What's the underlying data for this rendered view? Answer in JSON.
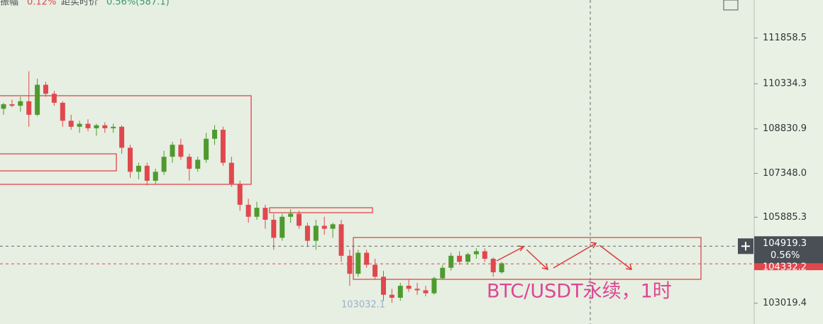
{
  "chart_data": {
    "type": "candlestick",
    "header": {
      "range_label": "振幅",
      "range_value": "0.12%",
      "dist_label": "距实时价",
      "dist_value": "0.56%(587.1)"
    },
    "annotation": "BTC/USDT永续，1时",
    "ylim": [
      102326,
      113125
    ],
    "yticks": [
      111858.5,
      110334.3,
      108830.9,
      {
        "value": 107348.0,
        "label": "107348.0"
      },
      105885.3,
      103019.4
    ],
    "up_color": "#4f9a2f",
    "down_color": "#e0484e",
    "candles": [
      [
        109500,
        109700,
        109300,
        109650
      ],
      [
        109650,
        109800,
        109550,
        109600
      ],
      [
        109600,
        109900,
        109400,
        109750
      ],
      [
        109750,
        110750,
        108900,
        109300
      ],
      [
        109300,
        110500,
        109250,
        110300
      ],
      [
        110300,
        110400,
        109900,
        110000
      ],
      [
        110000,
        110100,
        109600,
        109700
      ],
      [
        109700,
        109750,
        108900,
        109100
      ],
      [
        109100,
        109300,
        108800,
        108900
      ],
      [
        108900,
        109100,
        108700,
        109000
      ],
      [
        109000,
        109150,
        108750,
        108850
      ],
      [
        108850,
        109000,
        108600,
        108950
      ],
      [
        108950,
        109050,
        108700,
        108850
      ],
      [
        108850,
        109000,
        108700,
        108900
      ],
      [
        108900,
        108950,
        108000,
        108200
      ],
      [
        108200,
        108300,
        107200,
        107400
      ],
      [
        107400,
        107700,
        107150,
        107600
      ],
      [
        107600,
        107700,
        106950,
        107100
      ],
      [
        107100,
        107500,
        107000,
        107400
      ],
      [
        107400,
        108100,
        107300,
        107900
      ],
      [
        107900,
        108400,
        107700,
        108300
      ],
      [
        108300,
        108500,
        107800,
        107900
      ],
      [
        107900,
        108000,
        107100,
        107500
      ],
      [
        107500,
        107900,
        107400,
        107800
      ],
      [
        107800,
        108700,
        107700,
        108500
      ],
      [
        108500,
        108950,
        108300,
        108800
      ],
      [
        108800,
        108900,
        107600,
        107700
      ],
      [
        107700,
        107900,
        106900,
        107000
      ],
      [
        107000,
        107100,
        106100,
        106300
      ],
      [
        106300,
        106500,
        105700,
        105900
      ],
      [
        105900,
        106400,
        105800,
        106200
      ],
      [
        106200,
        106300,
        105500,
        105800
      ],
      [
        105800,
        106000,
        104800,
        105200
      ],
      [
        105200,
        106000,
        105100,
        105900
      ],
      [
        105900,
        106150,
        105700,
        106000
      ],
      [
        106000,
        106100,
        105500,
        105600
      ],
      [
        105600,
        105700,
        104900,
        105100
      ],
      [
        105100,
        105800,
        104800,
        105600
      ],
      [
        105600,
        105900,
        105300,
        105500
      ],
      [
        105500,
        105700,
        105200,
        105650
      ],
      [
        105650,
        105800,
        104400,
        104600
      ],
      [
        104600,
        104800,
        103600,
        104000
      ],
      [
        104000,
        104800,
        103900,
        104700
      ],
      [
        104700,
        104800,
        104200,
        104300
      ],
      [
        104300,
        104500,
        103800,
        103900
      ],
      [
        103900,
        104100,
        103100,
        103300
      ],
      [
        103300,
        103500,
        103032.1,
        103200
      ],
      [
        103200,
        103700,
        103100,
        103600
      ],
      [
        103600,
        103800,
        103400,
        103500
      ],
      [
        103500,
        103700,
        103300,
        103450
      ],
      [
        103450,
        103600,
        103250,
        103350
      ],
      [
        103350,
        103900,
        103300,
        103850
      ],
      [
        103850,
        104300,
        103800,
        104200
      ],
      [
        104200,
        104700,
        104100,
        104600
      ],
      [
        104600,
        104750,
        104300,
        104400
      ],
      [
        104400,
        104700,
        104300,
        104650
      ],
      [
        104650,
        104850,
        104500,
        104750
      ],
      [
        104750,
        104850,
        104400,
        104500
      ],
      [
        104500,
        104550,
        103900,
        104050
      ],
      [
        104050,
        104400,
        104000,
        104350
      ]
    ],
    "low_label": "103032.1",
    "current_price": 104919.3,
    "current_price_label": "104919.3",
    "change_label": "0.56%",
    "mark_price": 104332.2,
    "mark_price_label": "104332.2"
  }
}
